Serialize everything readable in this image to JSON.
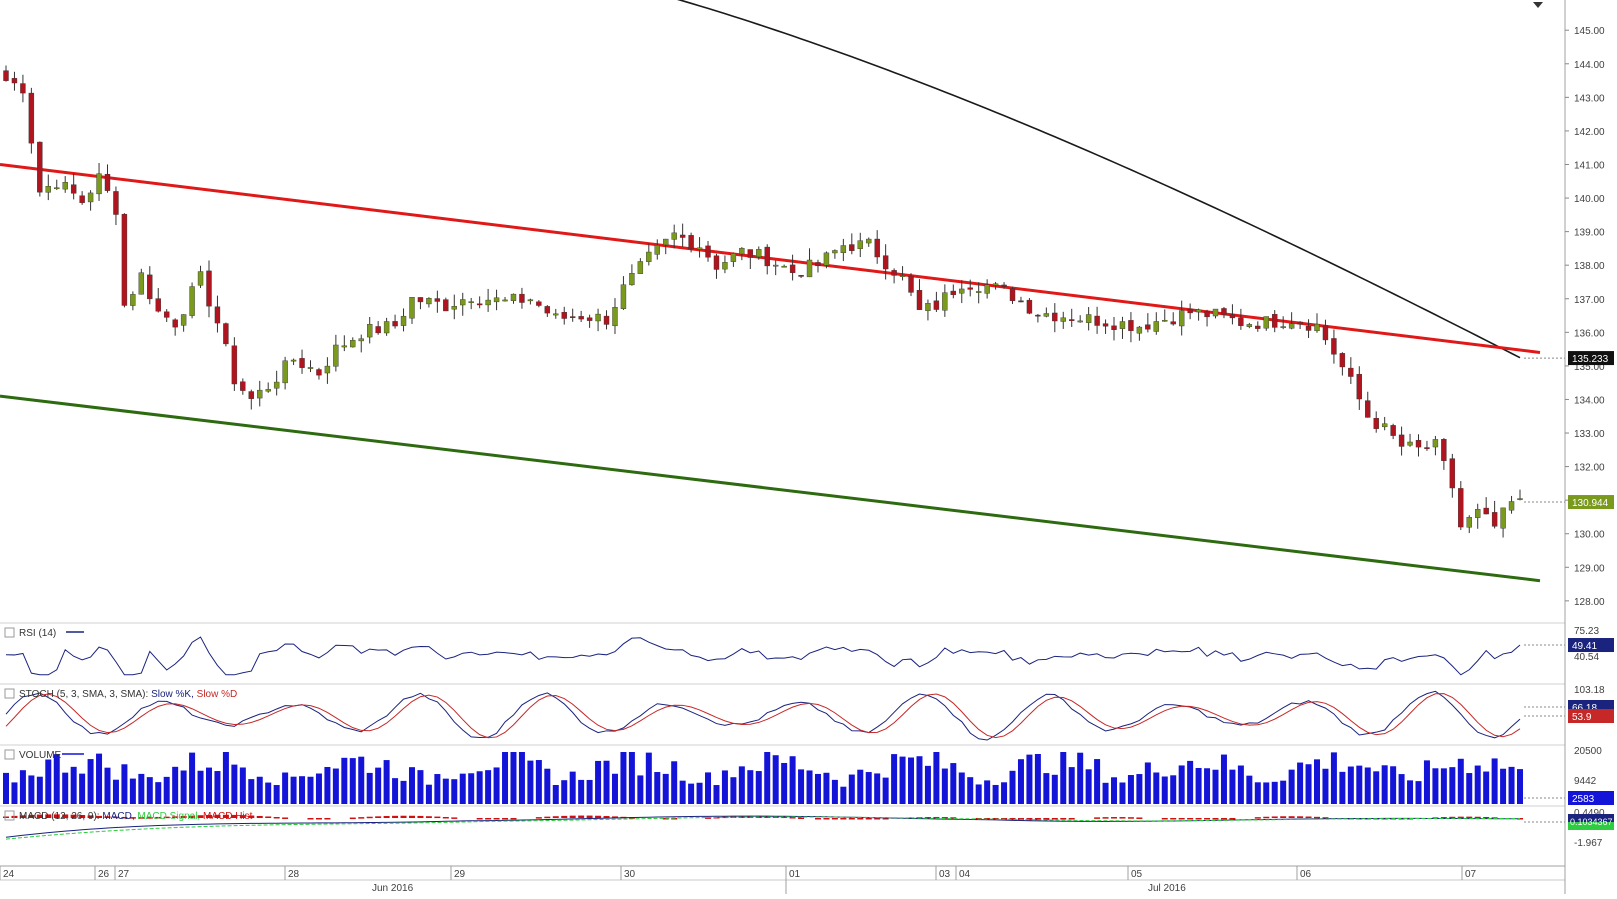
{
  "colors": {
    "bull": "#7a9a1e",
    "bear": "#b0141e",
    "upper_channel": "#e01818",
    "lower_channel": "#2d6a10",
    "ma_line": "#1a1a1a",
    "rsi_line": "#1a237e",
    "stoch_k": "#1a237e",
    "stoch_d": "#c62828",
    "volume_bar": "#1414d8",
    "macd_line": "#1a237e",
    "macd_signal": "#2ecc40",
    "macd_hist": "#d01010",
    "axis_text": "#404040",
    "grid": "#d8d8d8"
  },
  "price_panel": {
    "y_ticks": [
      "145.00",
      "144.00",
      "143.00",
      "142.00",
      "141.00",
      "140.00",
      "139.00",
      "138.00",
      "137.00",
      "136.00",
      "135.00",
      "134.00",
      "133.00",
      "132.00",
      "131.00",
      "130.00",
      "129.00",
      "128.00"
    ],
    "last_price_label": "130.944",
    "ma_label": "135.233"
  },
  "rsi_panel": {
    "title": "RSI (14)",
    "ticks": [
      "75.23",
      "40.54"
    ],
    "value_label": "49.41"
  },
  "stoch_panel": {
    "title_prefix": "STOCH (5, 3, SMA, 3, SMA):",
    "k_label": "Slow %K,",
    "d_label": "Slow %D",
    "ticks": [
      "103.18"
    ],
    "k_value": "66.18",
    "d_value": "53.9"
  },
  "volume_panel": {
    "title": "VOLUME",
    "ticks": [
      "20500",
      "9442"
    ],
    "value_label": "2583"
  },
  "macd_panel": {
    "title_prefix": "MACD (12, 26, 9):",
    "macd_label": "MACD,",
    "signal_label": "MACD Signal,",
    "hist_label": "MACD Hist",
    "ticks": [
      "0.4490",
      "-1.967"
    ],
    "value_label": "0.1034367"
  },
  "x_axis": {
    "day_labels": [
      "24",
      "26",
      "27",
      "28",
      "29",
      "30",
      "01",
      "03",
      "04",
      "05",
      "06",
      "07"
    ],
    "month_labels": [
      "Jun 2016",
      "Jul 2016"
    ]
  },
  "chart_data": {
    "type": "candlestick",
    "y_range": [
      127.4,
      145.9
    ],
    "candle_count": 180,
    "anchors": [
      [
        0,
        143.5
      ],
      [
        2,
        143.3
      ],
      [
        4,
        140.2
      ],
      [
        6,
        140.5
      ],
      [
        9,
        139.9
      ],
      [
        11,
        140.6
      ],
      [
        13,
        139.7
      ],
      [
        14,
        136.8
      ],
      [
        16,
        137.7
      ],
      [
        18,
        136.6
      ],
      [
        20,
        136.3
      ],
      [
        23,
        137.6
      ],
      [
        25,
        136.3
      ],
      [
        27,
        134.6
      ],
      [
        29,
        134.0
      ],
      [
        31,
        134.4
      ],
      [
        34,
        135.2
      ],
      [
        37,
        134.8
      ],
      [
        39,
        135.5
      ],
      [
        42,
        136.0
      ],
      [
        46,
        136.2
      ],
      [
        48,
        137.0
      ],
      [
        52,
        136.8
      ],
      [
        55,
        137.1
      ],
      [
        59,
        136.9
      ],
      [
        62,
        137.0
      ],
      [
        65,
        136.4
      ],
      [
        68,
        136.5
      ],
      [
        71,
        136.4
      ],
      [
        73,
        137.3
      ],
      [
        76,
        138.2
      ],
      [
        79,
        138.9
      ],
      [
        82,
        138.6
      ],
      [
        84,
        138.0
      ],
      [
        87,
        138.4
      ],
      [
        90,
        138.2
      ],
      [
        93,
        137.8
      ],
      [
        96,
        138.0
      ],
      [
        99,
        138.6
      ],
      [
        102,
        138.6
      ],
      [
        104,
        138.1
      ],
      [
        106,
        137.6
      ],
      [
        108,
        136.6
      ],
      [
        110,
        136.8
      ],
      [
        113,
        137.5
      ],
      [
        116,
        137.4
      ],
      [
        119,
        137.1
      ],
      [
        122,
        136.6
      ],
      [
        125,
        136.5
      ],
      [
        128,
        136.4
      ],
      [
        131,
        136.3
      ],
      [
        134,
        136.2
      ],
      [
        137,
        136.4
      ],
      [
        140,
        136.6
      ],
      [
        143,
        136.5
      ],
      [
        146,
        136.3
      ],
      [
        149,
        136.3
      ],
      [
        152,
        136.4
      ],
      [
        155,
        136.2
      ],
      [
        157,
        135.4
      ],
      [
        159,
        134.5
      ],
      [
        161,
        133.5
      ],
      [
        163,
        133.1
      ],
      [
        165,
        132.6
      ],
      [
        167,
        132.5
      ],
      [
        169,
        132.6
      ],
      [
        171,
        131.4
      ],
      [
        172,
        130.2
      ],
      [
        174,
        130.6
      ],
      [
        176,
        130.2
      ],
      [
        178,
        130.9
      ],
      [
        179,
        130.9
      ]
    ],
    "upper_channel": {
      "from": 141.0,
      "to": 135.4
    },
    "lower_channel": {
      "from": 134.1,
      "to": 128.6
    },
    "moving_average_label": "135.233",
    "last_price": 130.944
  }
}
